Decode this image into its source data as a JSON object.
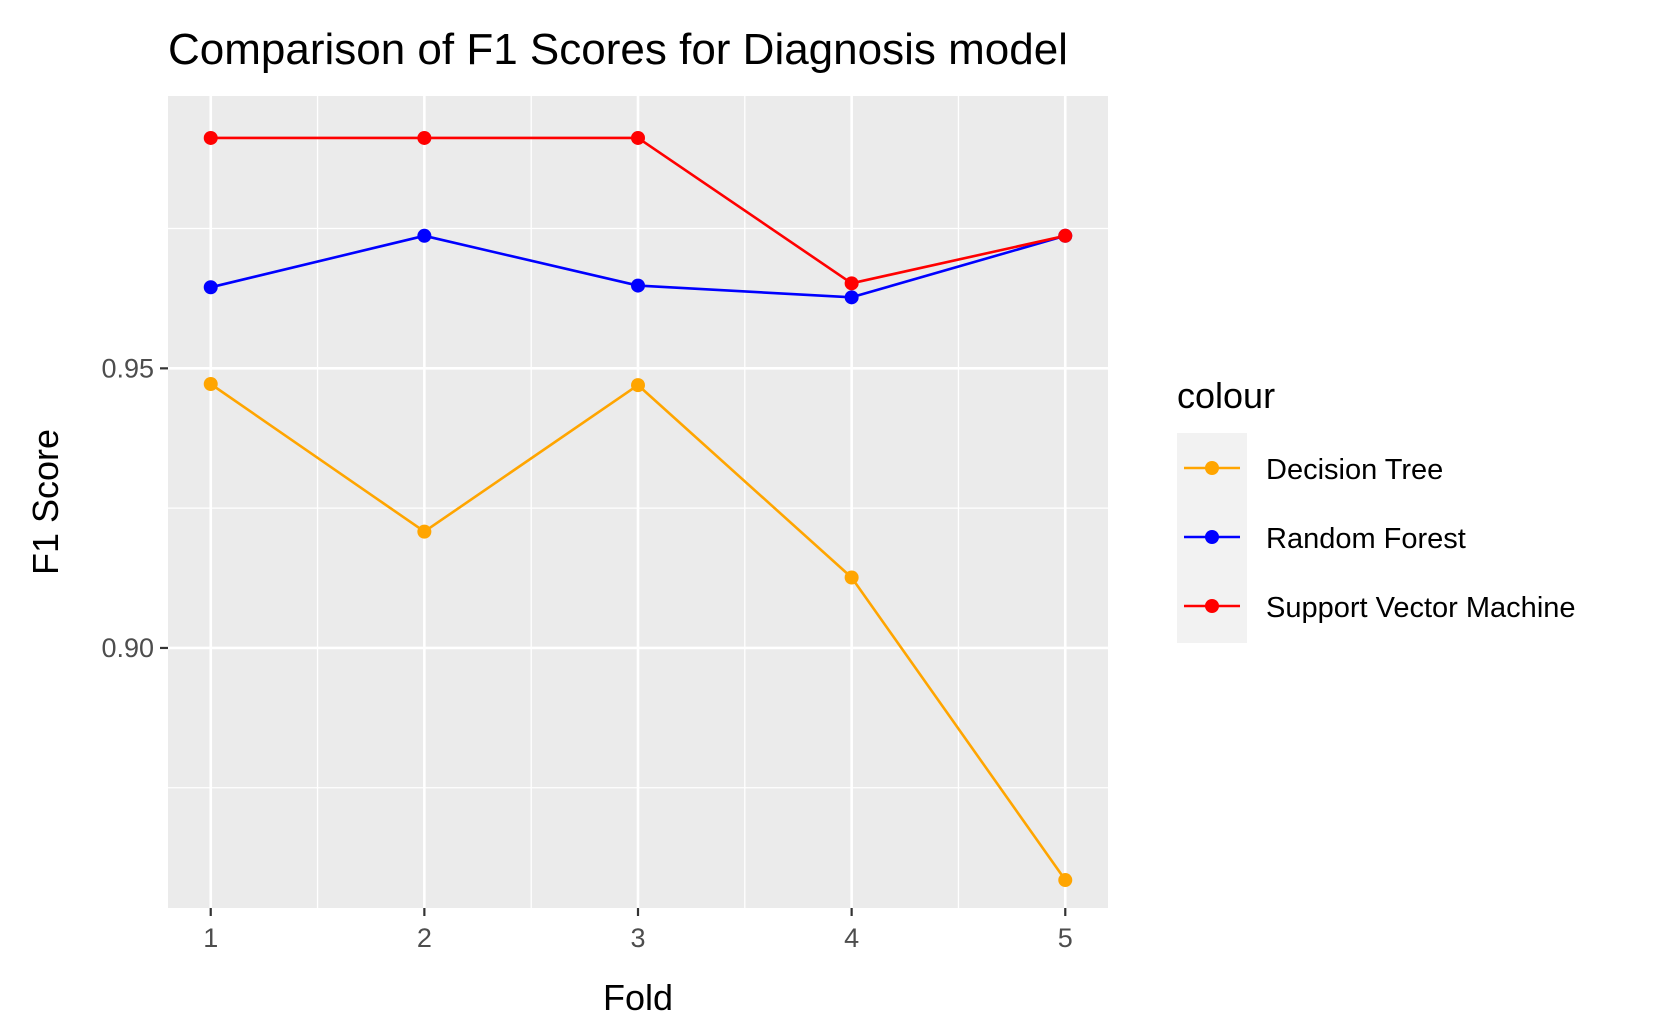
{
  "chart_data": {
    "type": "line",
    "title": "Comparison of F1 Scores for Diagnosis model",
    "xlabel": "Fold",
    "ylabel": "F1 Score",
    "x": [
      1,
      2,
      3,
      4,
      5
    ],
    "x_ticks": [
      "1",
      "2",
      "3",
      "4",
      "5"
    ],
    "y_ticks": [
      0.9,
      0.95
    ],
    "y_tick_labels": [
      "0.90",
      "0.95"
    ],
    "xlim": [
      0.8,
      5.2
    ],
    "ylim": [
      0.8535,
      0.9987
    ],
    "grid": true,
    "legend_position": "right",
    "legend_title": "colour",
    "panel_color": "#ebebeb",
    "series": [
      {
        "name": "Decision Tree",
        "color": "#ffa500",
        "values": [
          0.9472,
          0.9208,
          0.947,
          0.9126,
          0.8585
        ]
      },
      {
        "name": "Random Forest",
        "color": "#0000ff",
        "values": [
          0.9645,
          0.9737,
          0.9648,
          0.9627,
          0.9737
        ]
      },
      {
        "name": "Support Vector Machine",
        "color": "#ff0000",
        "values": [
          0.9912,
          0.9912,
          0.9912,
          0.9652,
          0.9737
        ]
      }
    ]
  }
}
